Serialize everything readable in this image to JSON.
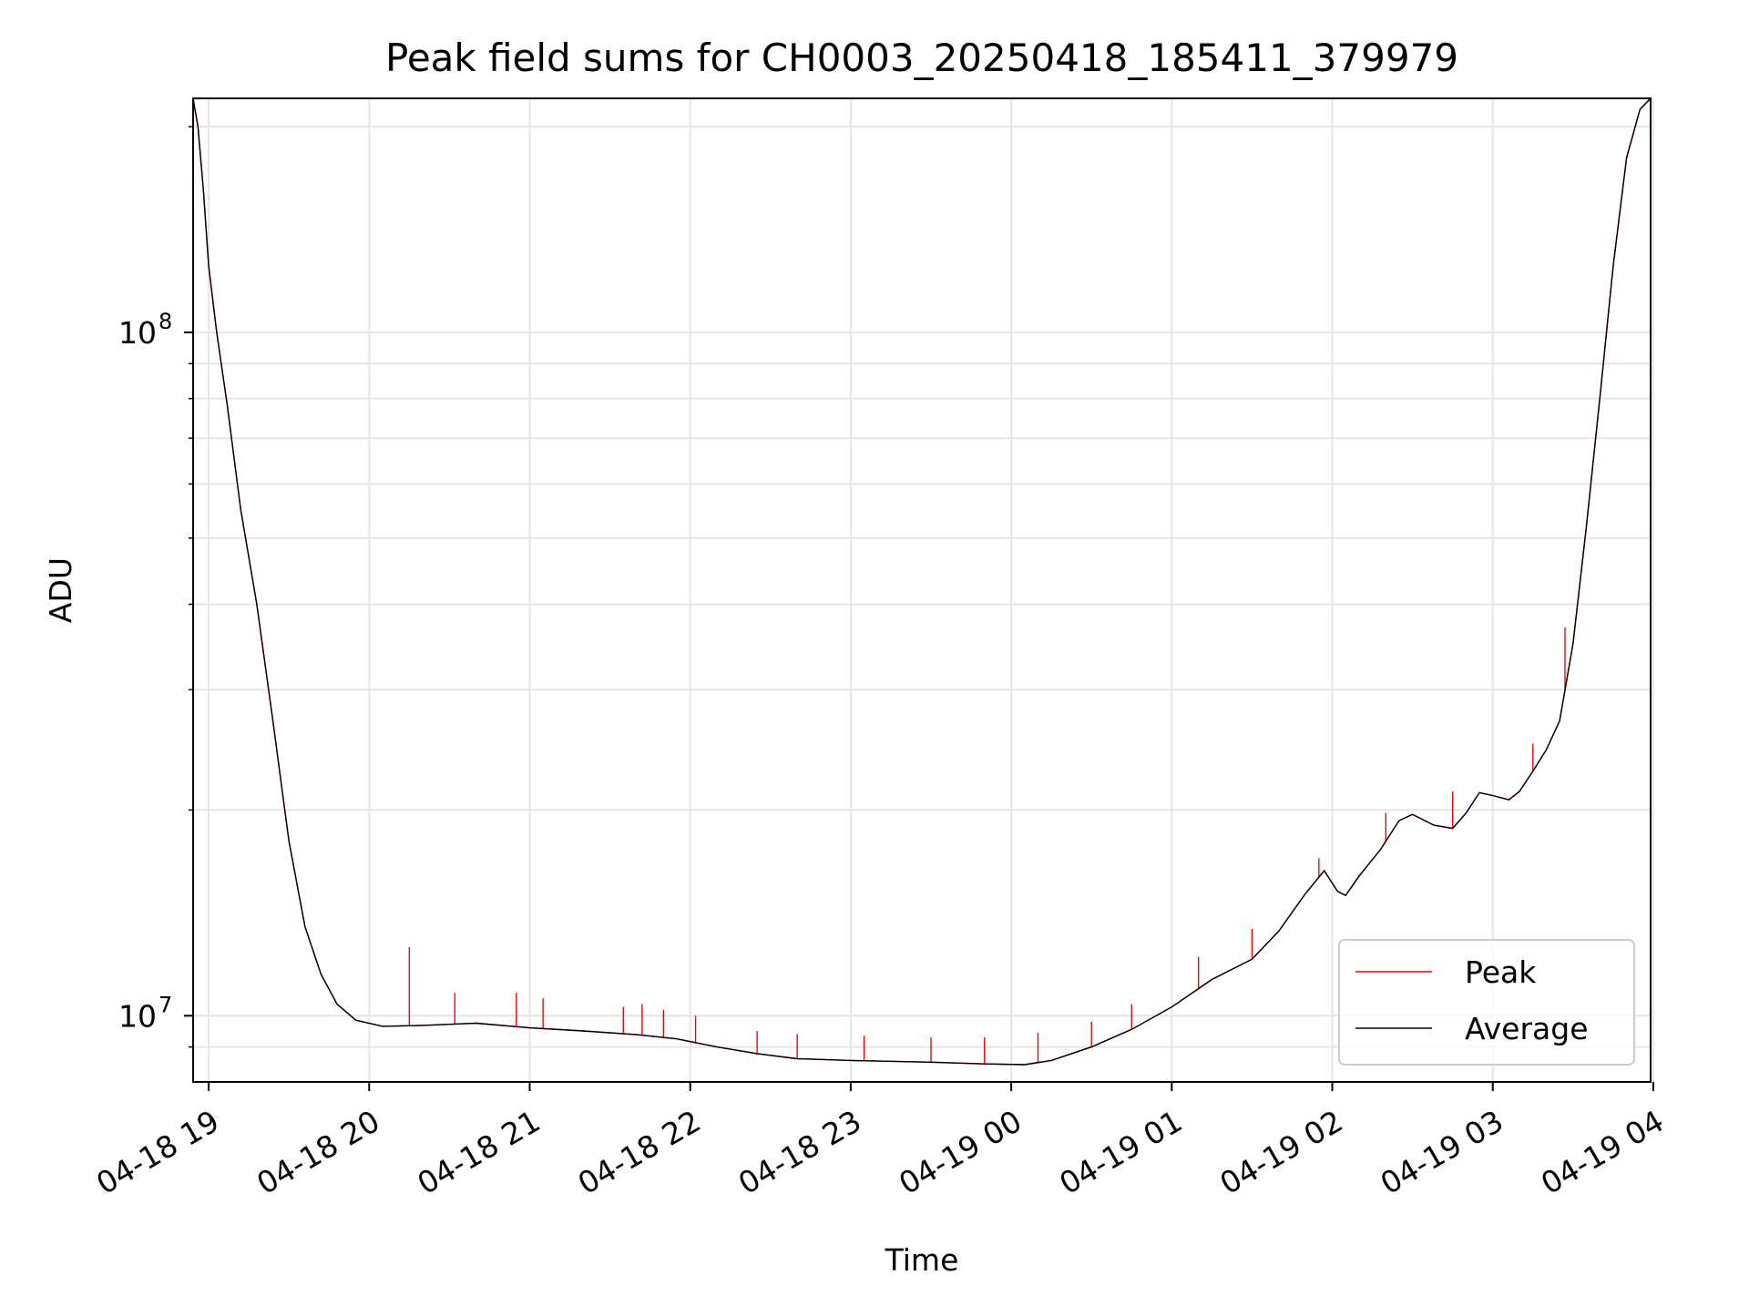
{
  "chart_data": {
    "type": "line",
    "title": "Peak field sums for CH0003_20250418_185411_379979",
    "xlabel": "Time",
    "ylabel": "ADU",
    "x_scale": "time",
    "y_scale": "log",
    "xlim": [
      "2025-04-18T18:54:11",
      "2025-04-19T03:59:00"
    ],
    "ylim": [
      8000000,
      220000000
    ],
    "x_ticks": [
      {
        "t": "2025-04-18T19:00",
        "label": "04-18 19"
      },
      {
        "t": "2025-04-18T20:00",
        "label": "04-18 20"
      },
      {
        "t": "2025-04-18T21:00",
        "label": "04-18 21"
      },
      {
        "t": "2025-04-18T22:00",
        "label": "04-18 22"
      },
      {
        "t": "2025-04-18T23:00",
        "label": "04-18 23"
      },
      {
        "t": "2025-04-19T00:00",
        "label": "04-19 00"
      },
      {
        "t": "2025-04-19T01:00",
        "label": "04-19 01"
      },
      {
        "t": "2025-04-19T02:00",
        "label": "04-19 02"
      },
      {
        "t": "2025-04-19T03:00",
        "label": "04-19 03"
      },
      {
        "t": "2025-04-19T04:00",
        "label": "04-19 04"
      }
    ],
    "y_ticks": [
      {
        "v": 10000000,
        "base": "10",
        "exp": "7"
      },
      {
        "v": 100000000,
        "base": "10",
        "exp": "8"
      }
    ],
    "grid": true,
    "legend": "lower right",
    "series": [
      {
        "name": "Average",
        "color": "#000000",
        "points": [
          [
            "2025-04-18T18:54:11",
            220000000
          ],
          [
            "2025-04-18T18:56",
            200000000
          ],
          [
            "2025-04-18T18:58",
            162000000
          ],
          [
            "2025-04-18T19:00",
            125000000
          ],
          [
            "2025-04-18T19:03",
            100000000
          ],
          [
            "2025-04-18T19:07",
            78000000
          ],
          [
            "2025-04-18T19:12",
            55000000
          ],
          [
            "2025-04-18T19:18",
            40000000
          ],
          [
            "2025-04-18T19:24",
            27000000
          ],
          [
            "2025-04-18T19:30",
            18000000
          ],
          [
            "2025-04-18T19:36",
            13500000
          ],
          [
            "2025-04-18T19:42",
            11500000
          ],
          [
            "2025-04-18T19:48",
            10400000
          ],
          [
            "2025-04-18T19:55",
            9850000
          ],
          [
            "2025-04-18T20:05",
            9650000
          ],
          [
            "2025-04-18T20:20",
            9680000
          ],
          [
            "2025-04-18T20:40",
            9750000
          ],
          [
            "2025-04-18T21:00",
            9600000
          ],
          [
            "2025-04-18T21:20",
            9500000
          ],
          [
            "2025-04-18T21:40",
            9380000
          ],
          [
            "2025-04-18T21:55",
            9250000
          ],
          [
            "2025-04-18T22:10",
            9000000
          ],
          [
            "2025-04-18T22:25",
            8800000
          ],
          [
            "2025-04-18T22:40",
            8650000
          ],
          [
            "2025-04-18T23:00",
            8600000
          ],
          [
            "2025-04-18T23:30",
            8550000
          ],
          [
            "2025-04-18T23:50",
            8500000
          ],
          [
            "2025-04-19T00:05",
            8480000
          ],
          [
            "2025-04-19T00:15",
            8600000
          ],
          [
            "2025-04-19T00:30",
            9000000
          ],
          [
            "2025-04-19T00:45",
            9550000
          ],
          [
            "2025-04-19T01:00",
            10300000
          ],
          [
            "2025-04-19T01:15",
            11300000
          ],
          [
            "2025-04-19T01:30",
            12100000
          ],
          [
            "2025-04-19T01:40",
            13300000
          ],
          [
            "2025-04-19T01:50",
            15100000
          ],
          [
            "2025-04-19T01:57",
            16300000
          ],
          [
            "2025-04-19T02:02",
            15200000
          ],
          [
            "2025-04-19T02:05",
            15000000
          ],
          [
            "2025-04-19T02:10",
            16000000
          ],
          [
            "2025-04-19T02:18",
            17500000
          ],
          [
            "2025-04-19T02:25",
            19300000
          ],
          [
            "2025-04-19T02:30",
            19700000
          ],
          [
            "2025-04-19T02:38",
            19000000
          ],
          [
            "2025-04-19T02:45",
            18800000
          ],
          [
            "2025-04-19T02:50",
            19800000
          ],
          [
            "2025-04-19T02:55",
            21200000
          ],
          [
            "2025-04-19T03:00",
            21000000
          ],
          [
            "2025-04-19T03:06",
            20700000
          ],
          [
            "2025-04-19T03:10",
            21300000
          ],
          [
            "2025-04-19T03:15",
            22800000
          ],
          [
            "2025-04-19T03:20",
            24500000
          ],
          [
            "2025-04-19T03:25",
            27000000
          ],
          [
            "2025-04-19T03:30",
            35000000
          ],
          [
            "2025-04-19T03:35",
            52000000
          ],
          [
            "2025-04-19T03:40",
            80000000
          ],
          [
            "2025-04-19T03:45",
            125000000
          ],
          [
            "2025-04-19T03:50",
            180000000
          ],
          [
            "2025-04-19T03:55",
            212000000
          ],
          [
            "2025-04-19T03:59",
            220000000
          ]
        ]
      },
      {
        "name": "Peak",
        "color": "#ff0000",
        "spikes": [
          [
            "2025-04-18T20:15",
            12600000
          ],
          [
            "2025-04-18T20:32",
            10800000
          ],
          [
            "2025-04-18T20:55",
            10800000
          ],
          [
            "2025-04-18T21:05",
            10600000
          ],
          [
            "2025-04-18T21:35",
            10300000
          ],
          [
            "2025-04-18T21:42",
            10400000
          ],
          [
            "2025-04-18T21:50",
            10200000
          ],
          [
            "2025-04-18T22:02",
            10000000
          ],
          [
            "2025-04-18T22:25",
            9500000
          ],
          [
            "2025-04-18T22:40",
            9400000
          ],
          [
            "2025-04-18T23:05",
            9350000
          ],
          [
            "2025-04-18T23:30",
            9300000
          ],
          [
            "2025-04-18T23:50",
            9300000
          ],
          [
            "2025-04-19T00:10",
            9450000
          ],
          [
            "2025-04-19T00:30",
            9800000
          ],
          [
            "2025-04-19T00:45",
            10400000
          ],
          [
            "2025-04-19T01:10",
            12200000
          ],
          [
            "2025-04-19T01:30",
            13400000
          ],
          [
            "2025-04-19T01:55",
            17000000
          ],
          [
            "2025-04-19T02:20",
            19800000
          ],
          [
            "2025-04-19T02:45",
            21300000
          ],
          [
            "2025-04-19T03:15",
            25000000
          ],
          [
            "2025-04-19T03:27",
            37000000
          ]
        ]
      }
    ]
  }
}
